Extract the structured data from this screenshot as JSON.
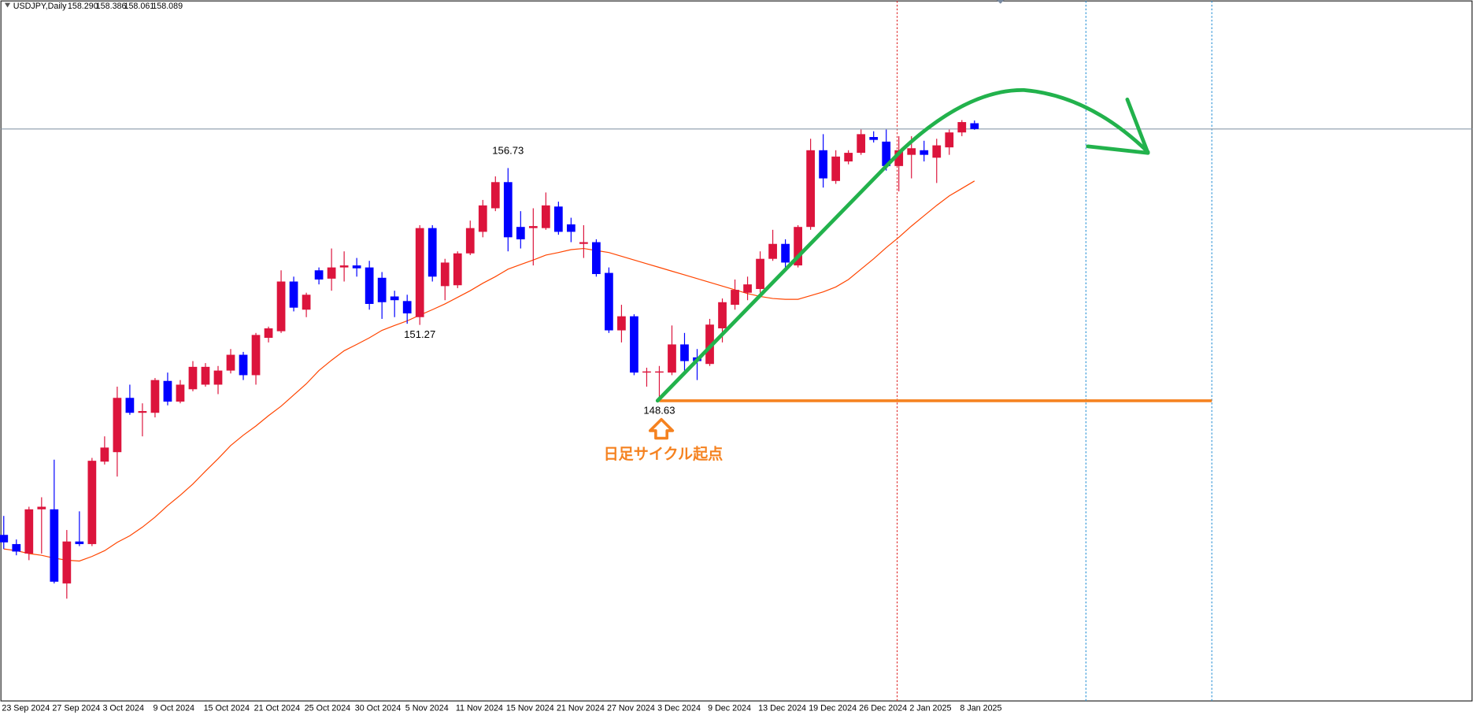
{
  "chart_data": {
    "type": "candlestick",
    "title": "USDJPY,Daily",
    "quote": [
      {
        "value": 158.29,
        "label": "158.290"
      },
      {
        "value": 158.386,
        "label": "158.386"
      },
      {
        "value": 158.061,
        "label": "158.061"
      },
      {
        "value": 158.089,
        "label": "158.089"
      }
    ],
    "categories": [
      "23 Sep 2024",
      null,
      null,
      null,
      "27 Sep 2024",
      null,
      null,
      null,
      "3 Oct 2024",
      null,
      null,
      null,
      "9 Oct 2024",
      null,
      null,
      null,
      "15 Oct 2024",
      null,
      null,
      null,
      "21 Oct 2024",
      null,
      null,
      null,
      "25 Oct 2024",
      null,
      null,
      null,
      "30 Oct 2024",
      null,
      null,
      null,
      "5 Nov 2024",
      null,
      null,
      null,
      "11 Nov 2024",
      null,
      null,
      null,
      "15 Nov 2024",
      null,
      null,
      null,
      "21 Nov 2024",
      null,
      null,
      null,
      "27 Nov 2024",
      null,
      null,
      null,
      "3 Dec 2024",
      null,
      null,
      null,
      "9 Dec 2024",
      null,
      null,
      null,
      "13 Dec 2024",
      null,
      null,
      null,
      "19 Dec 2024",
      null,
      null,
      null,
      "26 Dec 2024",
      null,
      null,
      null,
      "2 Jan 2025",
      null,
      null,
      null,
      "8 Jan 2025",
      null
    ],
    "open": [
      143.96,
      143.64,
      143.31,
      144.85,
      144.85,
      142.27,
      143.73,
      143.64,
      146.51,
      146.84,
      148.73,
      148.21,
      148.21,
      149.32,
      148.6,
      149.03,
      149.19,
      149.19,
      149.68,
      150.23,
      149.52,
      150.82,
      151.05,
      152.78,
      151.8,
      153.17,
      152.88,
      153.27,
      153.34,
      153.27,
      152.91,
      152.26,
      152.1,
      151.54,
      154.64,
      152.62,
      152.65,
      153.76,
      154.51,
      155.33,
      156.24,
      154.68,
      154.64,
      154.64,
      155.39,
      154.77,
      154.09,
      154.15,
      153.08,
      151.08,
      151.57,
      149.61,
      149.61,
      149.61,
      150.59,
      150.14,
      149.91,
      151.15,
      151.97,
      152.39,
      152.52,
      153.57,
      154.09,
      153.34,
      154.68,
      157.35,
      156.28,
      156.96,
      157.26,
      157.81,
      157.65,
      156.8,
      157.19,
      157.35,
      157.09,
      157.45,
      157.97,
      158.29
    ],
    "high": [
      144.62,
      143.8,
      144.94,
      145.27,
      146.58,
      144.13,
      144.78,
      146.64,
      147.39,
      149.12,
      149.19,
      148.54,
      149.42,
      149.61,
      149.35,
      150.01,
      149.94,
      149.84,
      150.43,
      150.33,
      150.99,
      151.21,
      153.17,
      152.95,
      152.39,
      153.27,
      153.93,
      153.83,
      153.6,
      153.5,
      153.11,
      152.46,
      152.32,
      154.74,
      154.74,
      153.57,
      153.83,
      154.9,
      155.62,
      156.44,
      156.73,
      155.23,
      155.33,
      155.88,
      155.56,
      155.0,
      154.74,
      154.25,
      153.27,
      151.97,
      151.64,
      149.78,
      149.84,
      151.25,
      150.99,
      150.43,
      151.48,
      152.19,
      152.85,
      152.95,
      153.83,
      154.58,
      154.25,
      154.74,
      157.75,
      157.91,
      157.35,
      157.35,
      158.07,
      158.01,
      158.07,
      157.84,
      157.84,
      157.68,
      157.75,
      158.07,
      158.4,
      158.386
    ],
    "low": [
      143.47,
      143.25,
      143.08,
      143.31,
      142.27,
      141.74,
      143.57,
      143.57,
      146.41,
      145.99,
      148.14,
      147.39,
      148.05,
      148.47,
      148.54,
      148.96,
      149.12,
      148.86,
      149.58,
      149.35,
      149.19,
      150.66,
      150.99,
      151.74,
      151.54,
      152.68,
      152.46,
      152.78,
      152.95,
      151.8,
      151.48,
      151.54,
      151.31,
      151.27,
      152.78,
      152.13,
      152.55,
      153.7,
      154.32,
      155.23,
      153.83,
      153.93,
      153.34,
      154.58,
      154.41,
      154.15,
      153.6,
      152.95,
      150.99,
      150.66,
      149.52,
      149.12,
      148.63,
      149.52,
      149.68,
      149.35,
      149.84,
      150.66,
      151.8,
      152.13,
      152.39,
      153.5,
      153.21,
      153.27,
      154.58,
      156.05,
      156.18,
      156.86,
      157.19,
      157.62,
      156.64,
      155.92,
      156.37,
      156.96,
      156.21,
      157.19,
      157.84,
      158.061
    ],
    "close": [
      143.7,
      143.38,
      144.85,
      144.94,
      142.33,
      143.73,
      143.64,
      146.54,
      147.0,
      148.73,
      148.21,
      148.27,
      149.35,
      148.6,
      149.19,
      149.81,
      149.81,
      149.68,
      150.23,
      149.52,
      150.92,
      151.15,
      152.78,
      151.87,
      152.32,
      152.85,
      153.27,
      153.34,
      153.24,
      152.0,
      152.06,
      152.13,
      151.67,
      154.64,
      152.95,
      153.44,
      153.76,
      154.64,
      155.43,
      156.24,
      154.32,
      154.25,
      154.71,
      155.43,
      154.51,
      154.51,
      154.15,
      153.04,
      151.08,
      151.57,
      149.61,
      149.65,
      149.65,
      150.59,
      150.01,
      150.01,
      151.28,
      152.06,
      152.49,
      152.68,
      153.57,
      154.09,
      153.44,
      154.68,
      157.35,
      156.37,
      157.13,
      157.26,
      157.91,
      157.71,
      156.8,
      157.35,
      157.42,
      157.19,
      157.52,
      157.97,
      158.33,
      158.089
    ],
    "up_color": "#dc143c",
    "down_color": "#0000ff",
    "moving_average": {
      "color": "#ff4500",
      "values": [
        143.47,
        143.41,
        143.31,
        143.25,
        143.15,
        143.08,
        143.05,
        143.21,
        143.41,
        143.7,
        143.93,
        144.23,
        144.58,
        144.98,
        145.34,
        145.73,
        146.18,
        146.61,
        147.07,
        147.43,
        147.75,
        148.11,
        148.44,
        148.83,
        149.22,
        149.68,
        150.04,
        150.37,
        150.59,
        150.82,
        151.08,
        151.25,
        151.41,
        151.61,
        151.8,
        152.0,
        152.23,
        152.46,
        152.72,
        152.95,
        153.21,
        153.37,
        153.53,
        153.7,
        153.79,
        153.89,
        153.93,
        153.86,
        153.79,
        153.66,
        153.53,
        153.4,
        153.27,
        153.14,
        153.01,
        152.88,
        152.75,
        152.62,
        152.49,
        152.36,
        152.26,
        152.19,
        152.16,
        152.16,
        152.29,
        152.42,
        152.59,
        152.85,
        153.21,
        153.57,
        153.96,
        154.32,
        154.71,
        155.07,
        155.43,
        155.76,
        156.02,
        156.28
      ]
    },
    "price_labels": [
      156.73,
      151.27,
      148.63
    ],
    "cycle_start_label": "日足サイクル起点",
    "ylim": [
      138.18,
      162.58
    ]
  }
}
